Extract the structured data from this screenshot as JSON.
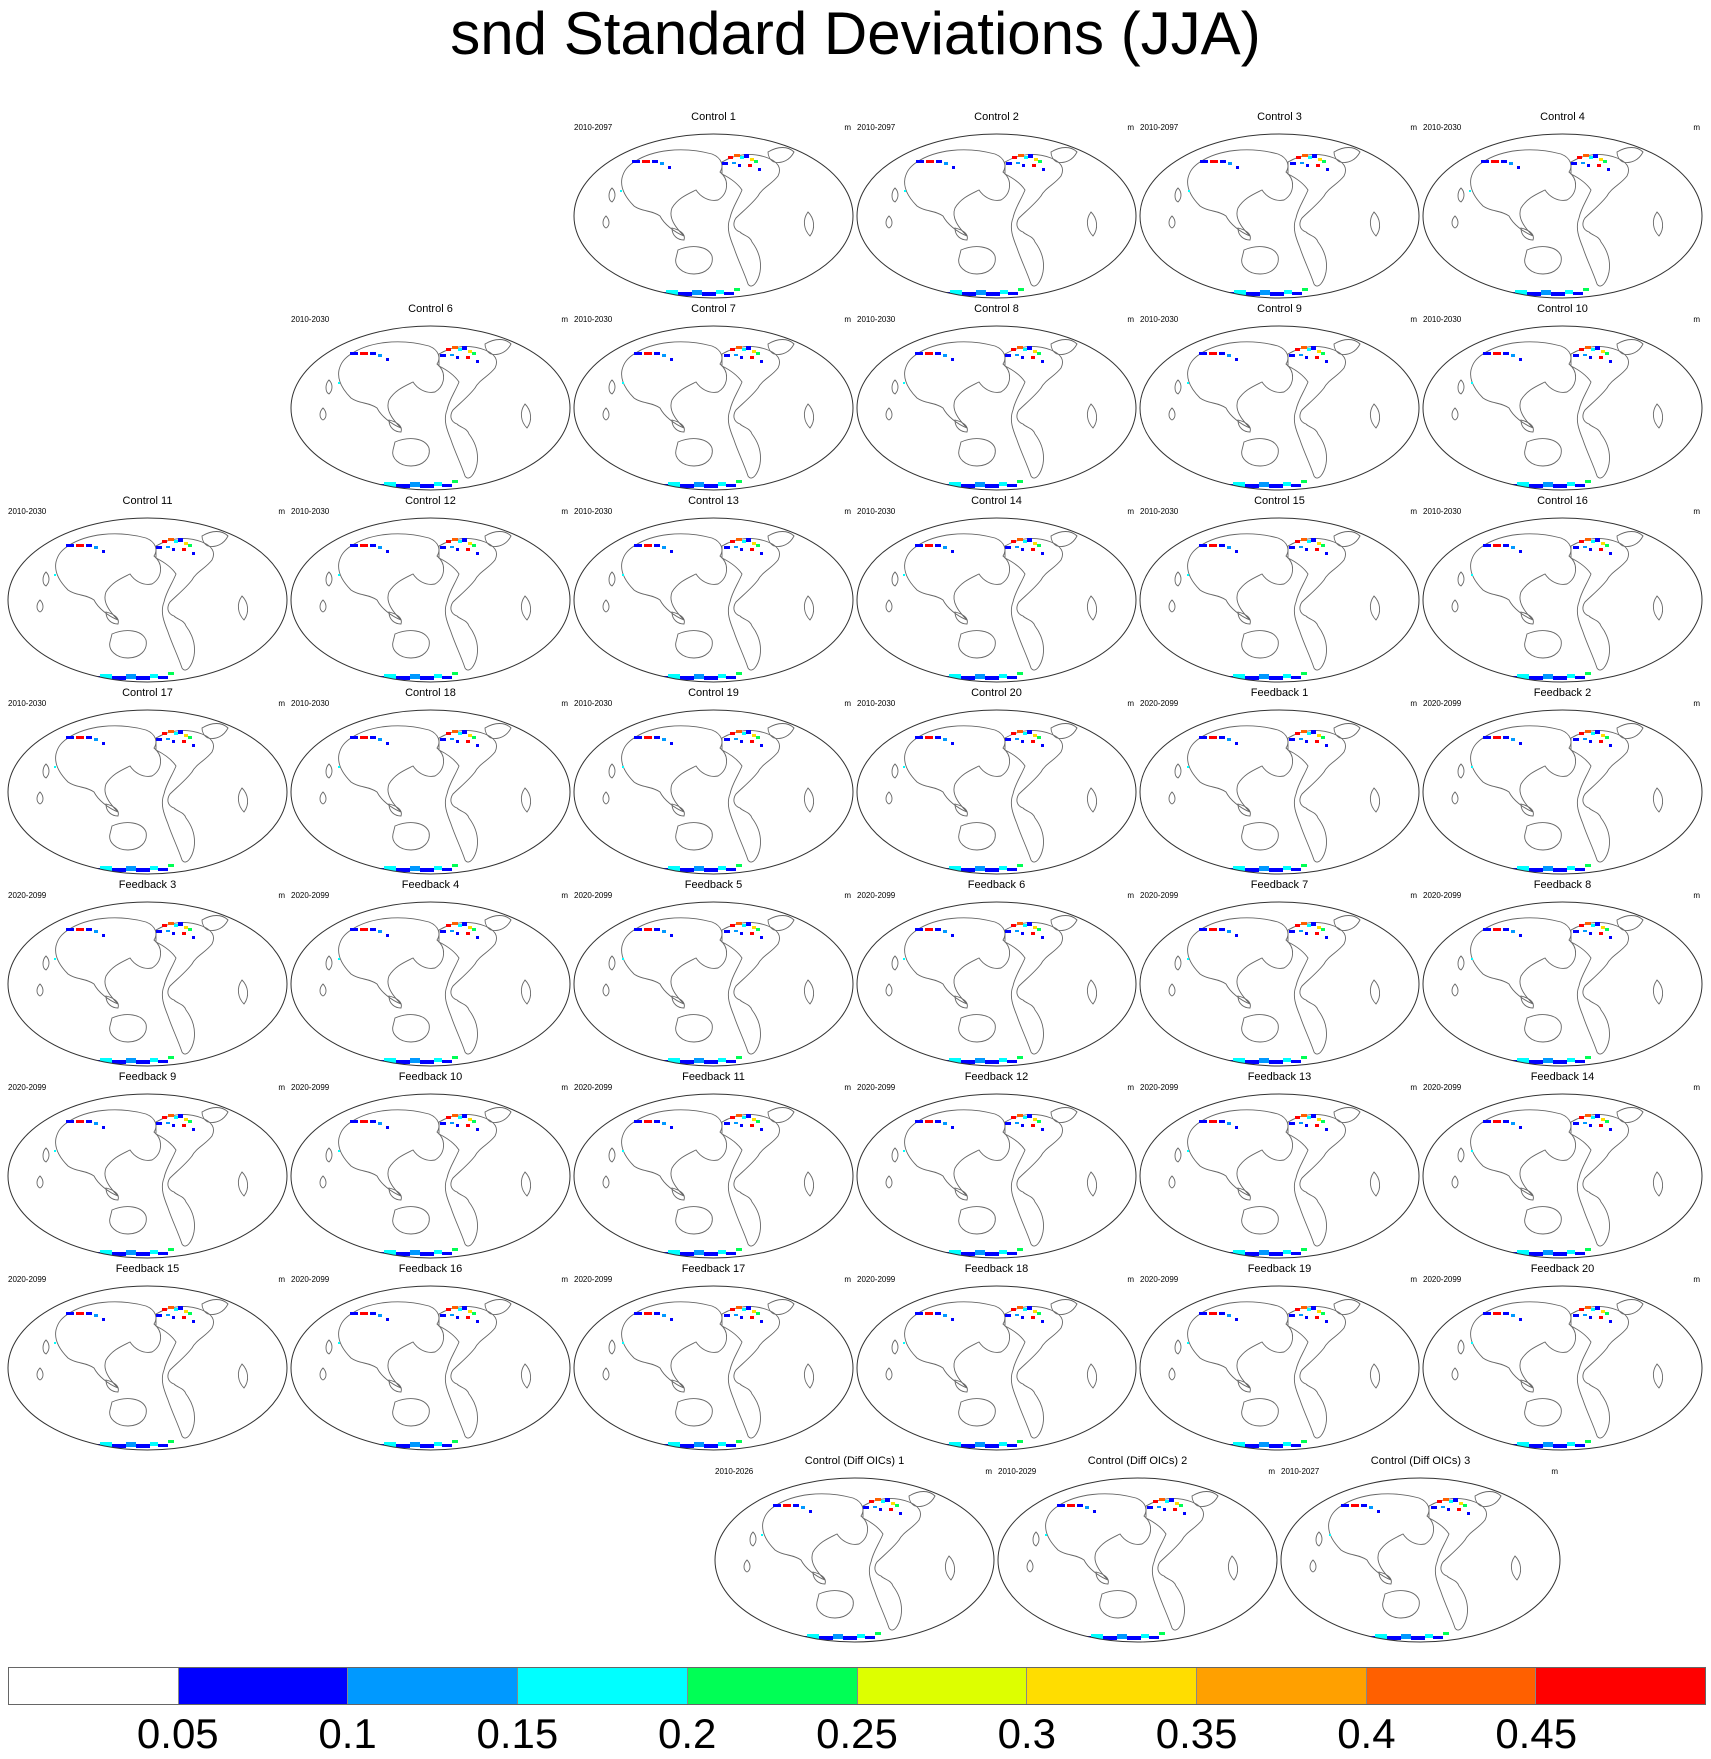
{
  "title": "snd Standard Deviations (JJA)",
  "units": "m",
  "panels": [
    {
      "title": "Control 1",
      "period": "2010-2097"
    },
    {
      "title": "Control 2",
      "period": "2010-2097"
    },
    {
      "title": "Control 3",
      "period": "2010-2097"
    },
    {
      "title": "Control 4",
      "period": "2010-2030"
    },
    {
      "title": "Control 6",
      "period": "2010-2030"
    },
    {
      "title": "Control 7",
      "period": "2010-2030"
    },
    {
      "title": "Control 8",
      "period": "2010-2030"
    },
    {
      "title": "Control 9",
      "period": "2010-2030"
    },
    {
      "title": "Control 10",
      "period": "2010-2030"
    },
    {
      "title": "Control 11",
      "period": "2010-2030"
    },
    {
      "title": "Control 12",
      "period": "2010-2030"
    },
    {
      "title": "Control 13",
      "period": "2010-2030"
    },
    {
      "title": "Control 14",
      "period": "2010-2030"
    },
    {
      "title": "Control 15",
      "period": "2010-2030"
    },
    {
      "title": "Control 16",
      "period": "2010-2030"
    },
    {
      "title": "Control 17",
      "period": "2010-2030"
    },
    {
      "title": "Control 18",
      "period": "2010-2030"
    },
    {
      "title": "Control 19",
      "period": "2010-2030"
    },
    {
      "title": "Control 20",
      "period": "2010-2030"
    },
    {
      "title": "Feedback 1",
      "period": "2020-2099"
    },
    {
      "title": "Feedback 2",
      "period": "2020-2099"
    },
    {
      "title": "Feedback 3",
      "period": "2020-2099"
    },
    {
      "title": "Feedback 4",
      "period": "2020-2099"
    },
    {
      "title": "Feedback 5",
      "period": "2020-2099"
    },
    {
      "title": "Feedback 6",
      "period": "2020-2099"
    },
    {
      "title": "Feedback 7",
      "period": "2020-2099"
    },
    {
      "title": "Feedback 8",
      "period": "2020-2099"
    },
    {
      "title": "Feedback 9",
      "period": "2020-2099"
    },
    {
      "title": "Feedback 10",
      "period": "2020-2099"
    },
    {
      "title": "Feedback 11",
      "period": "2020-2099"
    },
    {
      "title": "Feedback 12",
      "period": "2020-2099"
    },
    {
      "title": "Feedback 13",
      "period": "2020-2099"
    },
    {
      "title": "Feedback 14",
      "period": "2020-2099"
    },
    {
      "title": "Feedback 15",
      "period": "2020-2099"
    },
    {
      "title": "Feedback 16",
      "period": "2020-2099"
    },
    {
      "title": "Feedback 17",
      "period": "2020-2099"
    },
    {
      "title": "Feedback 18",
      "period": "2020-2099"
    },
    {
      "title": "Feedback 19",
      "period": "2020-2099"
    },
    {
      "title": "Feedback 20",
      "period": "2020-2099"
    },
    {
      "title": "Control (Diff OICs) 1",
      "period": "2010-2026"
    },
    {
      "title": "Control (Diff OICs) 2",
      "period": "2010-2029"
    },
    {
      "title": "Control (Diff OICs) 3",
      "period": "2010-2027"
    }
  ],
  "colorbar": {
    "colors": [
      "#ffffff",
      "#0000ff",
      "#0099ff",
      "#00ffff",
      "#00ff55",
      "#ddff00",
      "#ffdd00",
      "#ffa000",
      "#ff6000",
      "#ff0000"
    ],
    "labels": [
      "0.05",
      "0.1",
      "0.15",
      "0.2",
      "0.25",
      "0.3",
      "0.35",
      "0.4",
      "0.45"
    ]
  }
}
